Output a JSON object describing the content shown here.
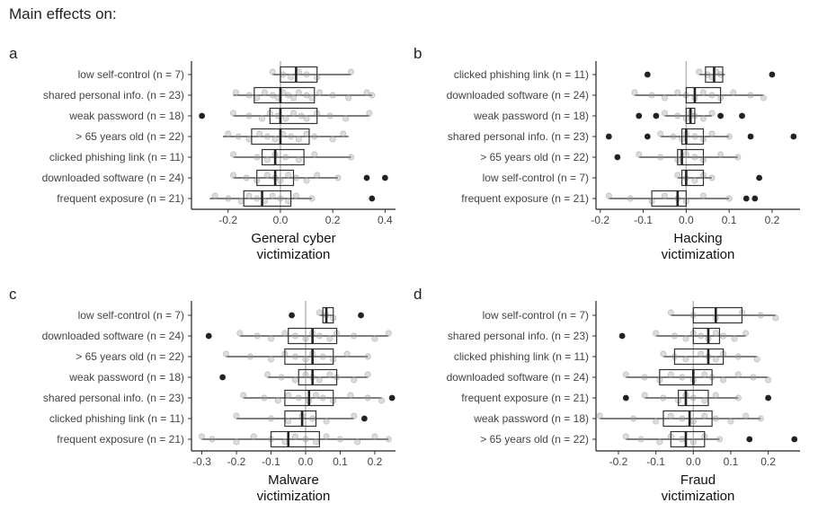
{
  "title": "Main effects on:",
  "chart_data": [
    {
      "panel": "a",
      "type": "boxplot",
      "xlabel": [
        "General cyber",
        "victimization"
      ],
      "xlim": [
        -0.34,
        0.44
      ],
      "xticks": [
        -0.2,
        0.0,
        0.2,
        0.4
      ],
      "xtick_labels": [
        "-0.2",
        "0.0",
        "0.2",
        "0.4"
      ],
      "categories": [
        "low self-control (n = 7)",
        "shared personal info. (n = 23)",
        "weak password (n = 18)",
        "> 65 years old (n = 22)",
        "clicked phishing link (n = 11)",
        "downloaded software (n = 24)",
        "frequent exposure (n = 21)"
      ],
      "boxes": [
        {
          "min": -0.03,
          "q1": 0.0,
          "median": 0.06,
          "q3": 0.14,
          "max": 0.27,
          "outliers": []
        },
        {
          "min": -0.18,
          "q1": -0.1,
          "median": 0.0,
          "q3": 0.13,
          "max": 0.35,
          "outliers": []
        },
        {
          "min": -0.18,
          "q1": -0.04,
          "median": 0.0,
          "q3": 0.14,
          "max": 0.34,
          "outliers": [
            -0.3
          ]
        },
        {
          "min": -0.22,
          "q1": -0.11,
          "median": 0.0,
          "q3": 0.11,
          "max": 0.26,
          "outliers": []
        },
        {
          "min": -0.18,
          "q1": -0.07,
          "median": -0.02,
          "q3": 0.09,
          "max": 0.27,
          "outliers": []
        },
        {
          "min": -0.18,
          "q1": -0.09,
          "median": -0.02,
          "q3": 0.05,
          "max": 0.22,
          "outliers": [
            0.33,
            0.4
          ]
        },
        {
          "min": -0.27,
          "q1": -0.14,
          "median": -0.07,
          "q3": 0.04,
          "max": 0.12,
          "outliers": [
            0.35
          ]
        }
      ],
      "points": [
        [
          -0.03,
          0.01,
          0.04,
          0.07,
          0.1,
          0.14,
          0.27
        ],
        [
          -0.17,
          -0.12,
          -0.09,
          -0.06,
          -0.03,
          -0.01,
          0.01,
          0.03,
          0.05,
          0.07,
          0.1,
          0.12,
          0.15,
          0.2,
          0.26,
          0.33,
          0.35
        ],
        [
          -0.18,
          -0.12,
          -0.07,
          -0.04,
          -0.01,
          0.02,
          0.05,
          0.08,
          0.1,
          0.14,
          0.19,
          0.25,
          0.34
        ],
        [
          -0.2,
          -0.16,
          -0.12,
          -0.08,
          -0.05,
          -0.02,
          0.01,
          0.04,
          0.07,
          0.1,
          0.13,
          0.2,
          0.24
        ],
        [
          -0.18,
          -0.09,
          -0.05,
          -0.02,
          0.02,
          0.07,
          0.13,
          0.27
        ],
        [
          -0.18,
          -0.13,
          -0.09,
          -0.05,
          -0.02,
          0.0,
          0.03,
          0.06,
          0.1,
          0.14,
          0.22
        ],
        [
          -0.25,
          -0.2,
          -0.15,
          -0.12,
          -0.09,
          -0.06,
          -0.03,
          0.0,
          0.03,
          0.06,
          0.12
        ]
      ]
    },
    {
      "panel": "b",
      "type": "boxplot",
      "xlabel": [
        "Hacking",
        "victimization"
      ],
      "xlim": [
        -0.21,
        0.265
      ],
      "xticks": [
        -0.2,
        -0.1,
        0.0,
        0.1,
        0.2
      ],
      "xtick_labels": [
        "-0.2",
        "-0.1",
        "0.0",
        "0.1",
        "0.2"
      ],
      "categories": [
        "clicked phishing link (n = 11)",
        "downloaded software (n = 24)",
        "weak password (n = 18)",
        "shared personal info. (n = 23)",
        "> 65 years old (n = 22)",
        "low self-control (n = 7)",
        "frequent exposure (n = 21)"
      ],
      "boxes": [
        {
          "min": 0.03,
          "q1": 0.045,
          "median": 0.065,
          "q3": 0.085,
          "max": 0.09,
          "outliers": [
            -0.09,
            0.2
          ]
        },
        {
          "min": -0.12,
          "q1": 0.0,
          "median": 0.02,
          "q3": 0.08,
          "max": 0.18,
          "outliers": []
        },
        {
          "min": -0.05,
          "q1": 0.0,
          "median": 0.01,
          "q3": 0.02,
          "max": 0.06,
          "outliers": [
            -0.11,
            -0.07,
            0.08,
            0.13
          ]
        },
        {
          "min": -0.06,
          "q1": -0.01,
          "median": 0.0,
          "q3": 0.04,
          "max": 0.1,
          "outliers": [
            -0.18,
            -0.09,
            0.15,
            0.25
          ]
        },
        {
          "min": -0.11,
          "q1": -0.02,
          "median": -0.01,
          "q3": 0.04,
          "max": 0.12,
          "outliers": [
            -0.16
          ]
        },
        {
          "min": -0.02,
          "q1": -0.01,
          "median": 0.0,
          "q3": 0.04,
          "max": 0.06,
          "outliers": [
            0.17
          ]
        },
        {
          "min": -0.18,
          "q1": -0.08,
          "median": -0.02,
          "q3": 0.0,
          "max": 0.1,
          "outliers": [
            0.14,
            0.16
          ]
        }
      ],
      "points": [
        [
          0.03,
          0.05,
          0.06,
          0.07,
          0.08
        ],
        [
          -0.12,
          -0.08,
          -0.05,
          -0.02,
          0.0,
          0.02,
          0.04,
          0.06,
          0.08,
          0.11,
          0.15,
          0.18
        ],
        [
          -0.05,
          -0.02,
          0.0,
          0.01,
          0.02,
          0.04,
          0.06
        ],
        [
          -0.06,
          -0.03,
          -0.01,
          0.0,
          0.02,
          0.04,
          0.06,
          0.1
        ],
        [
          -0.11,
          -0.06,
          -0.02,
          0.0,
          0.02,
          0.04,
          0.08,
          0.12
        ],
        [
          -0.02,
          0.0,
          0.02,
          0.04,
          0.06
        ],
        [
          -0.18,
          -0.13,
          -0.08,
          -0.05,
          -0.02,
          0.0,
          0.04,
          0.1
        ]
      ]
    },
    {
      "panel": "c",
      "type": "boxplot",
      "xlabel": [
        "Malware",
        "victimization"
      ],
      "xlim": [
        -0.33,
        0.26
      ],
      "xticks": [
        -0.3,
        -0.2,
        -0.1,
        0.0,
        0.1,
        0.2
      ],
      "xtick_labels": [
        "-0.3",
        "-0.2",
        "-0.1",
        "0.0",
        "0.1",
        "0.2"
      ],
      "categories": [
        "low self-control (n = 7)",
        "downloaded software (n = 24)",
        "> 65 years old (n = 22)",
        "weak password (n = 18)",
        "shared personal info. (n = 23)",
        "clicked phishing link (n = 11)",
        "frequent exposure (n = 21)"
      ],
      "boxes": [
        {
          "min": 0.04,
          "q1": 0.05,
          "median": 0.06,
          "q3": 0.08,
          "max": 0.08,
          "outliers": [
            -0.04,
            0.16
          ]
        },
        {
          "min": -0.19,
          "q1": -0.05,
          "median": 0.02,
          "q3": 0.09,
          "max": 0.24,
          "outliers": [
            -0.28
          ]
        },
        {
          "min": -0.23,
          "q1": -0.06,
          "median": 0.02,
          "q3": 0.08,
          "max": 0.18,
          "outliers": []
        },
        {
          "min": -0.11,
          "q1": -0.02,
          "median": 0.02,
          "q3": 0.09,
          "max": 0.18,
          "outliers": [
            -0.24
          ]
        },
        {
          "min": -0.18,
          "q1": -0.06,
          "median": 0.01,
          "q3": 0.08,
          "max": 0.22,
          "outliers": [
            0.25
          ]
        },
        {
          "min": -0.2,
          "q1": -0.06,
          "median": -0.01,
          "q3": 0.03,
          "max": 0.14,
          "outliers": [
            0.17
          ]
        },
        {
          "min": -0.3,
          "q1": -0.1,
          "median": -0.05,
          "q3": 0.04,
          "max": 0.24,
          "outliers": []
        }
      ],
      "points": [
        [
          0.04,
          0.06,
          0.08
        ],
        [
          -0.19,
          -0.14,
          -0.1,
          -0.06,
          -0.03,
          0.0,
          0.02,
          0.04,
          0.07,
          0.09,
          0.14,
          0.2,
          0.24
        ],
        [
          -0.23,
          -0.16,
          -0.1,
          -0.06,
          -0.03,
          0.0,
          0.02,
          0.05,
          0.08,
          0.12,
          0.18
        ],
        [
          -0.11,
          -0.07,
          -0.03,
          0.0,
          0.02,
          0.04,
          0.07,
          0.09,
          0.14,
          0.18
        ],
        [
          -0.18,
          -0.12,
          -0.08,
          -0.05,
          -0.02,
          0.01,
          0.03,
          0.05,
          0.08,
          0.13,
          0.18,
          0.22
        ],
        [
          -0.2,
          -0.1,
          -0.05,
          -0.01,
          0.02,
          0.06,
          0.14
        ],
        [
          -0.3,
          -0.27,
          -0.2,
          -0.15,
          -0.1,
          -0.06,
          -0.03,
          0.0,
          0.03,
          0.06,
          0.1,
          0.15,
          0.2,
          0.24
        ]
      ]
    },
    {
      "panel": "d",
      "type": "boxplot",
      "xlabel": [
        "Fraud",
        "victimization"
      ],
      "xlim": [
        -0.26,
        0.285
      ],
      "xticks": [
        -0.2,
        -0.1,
        0.0,
        0.1,
        0.2
      ],
      "xtick_labels": [
        "-0.2",
        "-0.1",
        "0.0",
        "0.1",
        "0.2"
      ],
      "categories": [
        "low self-control (n = 7)",
        "shared personal info. (n = 23)",
        "clicked phishing link (n = 11)",
        "downloaded software (n = 24)",
        "frequent exposure (n = 21)",
        "weak password (n = 18)",
        "> 65 years old (n = 22)"
      ],
      "boxes": [
        {
          "min": -0.06,
          "q1": 0.0,
          "median": 0.06,
          "q3": 0.13,
          "max": 0.22,
          "outliers": []
        },
        {
          "min": -0.1,
          "q1": 0.0,
          "median": 0.04,
          "q3": 0.07,
          "max": 0.14,
          "outliers": [
            -0.19
          ]
        },
        {
          "min": -0.08,
          "q1": -0.05,
          "median": 0.04,
          "q3": 0.08,
          "max": 0.17,
          "outliers": []
        },
        {
          "min": -0.18,
          "q1": -0.09,
          "median": 0.0,
          "q3": 0.05,
          "max": 0.2,
          "outliers": []
        },
        {
          "min": -0.13,
          "q1": -0.04,
          "median": -0.02,
          "q3": 0.04,
          "max": 0.12,
          "outliers": [
            -0.18,
            0.2
          ]
        },
        {
          "min": -0.25,
          "q1": -0.08,
          "median": -0.01,
          "q3": 0.05,
          "max": 0.18,
          "outliers": []
        },
        {
          "min": -0.18,
          "q1": -0.06,
          "median": -0.02,
          "q3": 0.03,
          "max": 0.07,
          "outliers": [
            0.15,
            0.27
          ]
        }
      ],
      "points": [
        [
          -0.06,
          0.0,
          0.06,
          0.13,
          0.18,
          0.22
        ],
        [
          -0.1,
          -0.05,
          -0.02,
          0.0,
          0.02,
          0.04,
          0.06,
          0.08,
          0.11,
          0.14
        ],
        [
          -0.08,
          -0.05,
          -0.02,
          0.02,
          0.04,
          0.06,
          0.08,
          0.12,
          0.17
        ],
        [
          -0.18,
          -0.13,
          -0.09,
          -0.06,
          -0.03,
          0.0,
          0.03,
          0.05,
          0.08,
          0.12,
          0.16,
          0.2
        ],
        [
          -0.13,
          -0.08,
          -0.04,
          -0.02,
          0.0,
          0.03,
          0.06,
          0.12
        ],
        [
          -0.25,
          -0.16,
          -0.1,
          -0.06,
          -0.03,
          0.0,
          0.03,
          0.06,
          0.1,
          0.14,
          0.18
        ],
        [
          -0.18,
          -0.14,
          -0.09,
          -0.06,
          -0.03,
          0.0,
          0.03,
          0.07
        ]
      ]
    }
  ]
}
